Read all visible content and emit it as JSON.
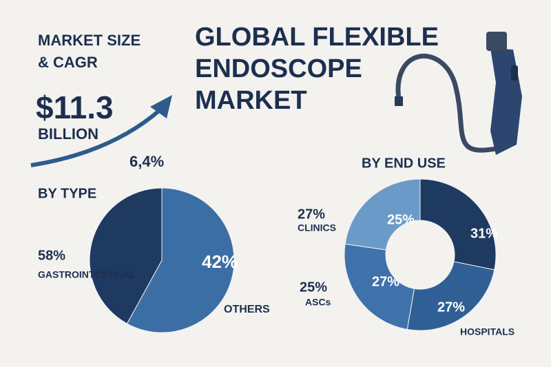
{
  "header": {
    "title_lines": [
      "GLOBAL FLEXIBLE",
      "ENDOSCOPE",
      "MARKET"
    ]
  },
  "market_size": {
    "heading_lines": [
      "MARKET SIZE",
      "& CAGR"
    ],
    "value": "$11.3",
    "unit": "BILLION",
    "cagr": "6,4%"
  },
  "chart_data": [
    {
      "type": "pie",
      "title": "BY TYPE",
      "categories": [
        "GASTROINTESTINAL",
        "OTHERS"
      ],
      "values": [
        58,
        42
      ],
      "value_labels": [
        "58%",
        "42%"
      ],
      "colors": [
        "#3b6ea5",
        "#1f3a61"
      ]
    },
    {
      "type": "donut",
      "title": "BY END USE",
      "categories": [
        null,
        "HOSPITALS",
        "ASCs",
        "CLINICS"
      ],
      "values": [
        31,
        27,
        27,
        25
      ],
      "value_labels": [
        "31%",
        "27%",
        "27%",
        "25%"
      ],
      "colors": [
        "#1f3a61",
        "#2f5f95",
        "#3f72aa",
        "#6a9bc8"
      ],
      "annotations": [
        "27%",
        "25%"
      ]
    }
  ]
}
